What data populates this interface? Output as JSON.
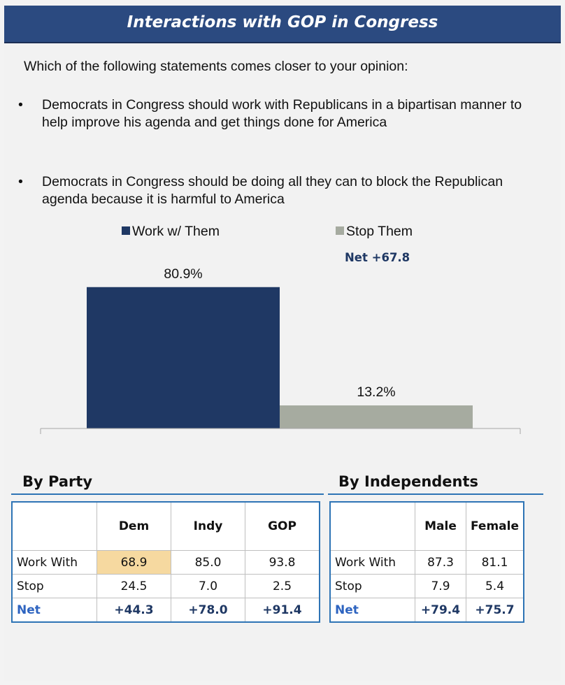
{
  "title": "Interactions with GOP in Congress",
  "question": "Which of the following statements comes closer to your opinion:",
  "options": [
    "Democrats in Congress should work with Republicans in a bipartisan manner to help improve his agenda and get things done for America",
    "Democrats in Congress should be doing all they can to block the Republican agenda because it is harmful to America"
  ],
  "bullet": "•",
  "net_label": "Net +67.8",
  "colors": {
    "header": "#2b4a80",
    "work": "#1f3864",
    "stop": "#a6aba0",
    "accent": "#2e74b5",
    "highlight": "#f6d9a0"
  },
  "chart_data": {
    "type": "bar",
    "series": [
      {
        "name": "Work w/ Them",
        "values": [
          80.9
        ],
        "label": "80.9%",
        "color": "#1f3864"
      },
      {
        "name": "Stop Them",
        "values": [
          13.2
        ],
        "label": "13.2%",
        "color": "#a6aba0"
      }
    ],
    "ylim": [
      0,
      100
    ],
    "legend": "top",
    "grid": false
  },
  "by_party": {
    "heading": "By Party",
    "columns": [
      "",
      "Dem",
      "Indy",
      "GOP"
    ],
    "rows": [
      {
        "label": "Work With",
        "values": [
          "68.9",
          "85.0",
          "93.8"
        ]
      },
      {
        "label": "Stop",
        "values": [
          "24.5",
          "7.0",
          "2.5"
        ]
      },
      {
        "label": "Net",
        "values": [
          "+44.3",
          "+78.0",
          "+91.4"
        ]
      }
    ]
  },
  "by_independents": {
    "heading": "By Independents",
    "columns": [
      "",
      "Male",
      "Female"
    ],
    "rows": [
      {
        "label": "Work With",
        "values": [
          "87.3",
          "81.1"
        ]
      },
      {
        "label": "Stop",
        "values": [
          "7.9",
          "5.4"
        ]
      },
      {
        "label": "Net",
        "values": [
          "+79.4",
          "+75.7"
        ]
      }
    ]
  }
}
